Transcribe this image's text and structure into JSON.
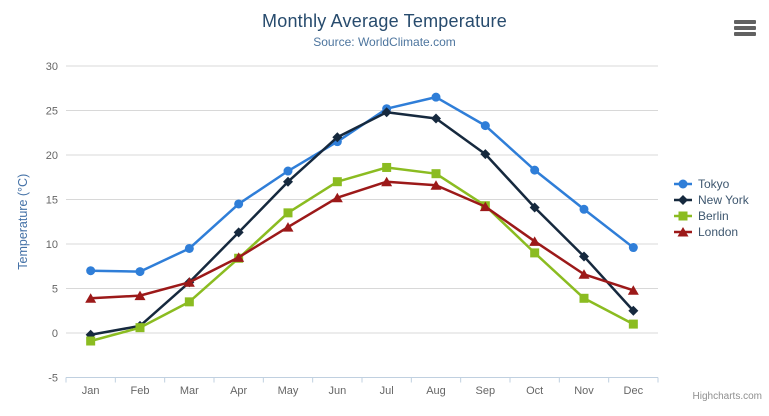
{
  "chart_data": {
    "type": "line",
    "title": "Monthly Average Temperature",
    "subtitle": "Source: WorldClimate.com",
    "xlabel": "",
    "ylabel": "Temperature (°C)",
    "ylim": [
      -5,
      30
    ],
    "yticks": [
      -5,
      0,
      5,
      10,
      15,
      20,
      25,
      30
    ],
    "grid": true,
    "legend_position": "right",
    "categories": [
      "Jan",
      "Feb",
      "Mar",
      "Apr",
      "May",
      "Jun",
      "Jul",
      "Aug",
      "Sep",
      "Oct",
      "Nov",
      "Dec"
    ],
    "series": [
      {
        "name": "Tokyo",
        "color": "#2f7ed8",
        "marker": "circle",
        "values": [
          7.0,
          6.9,
          9.5,
          14.5,
          18.2,
          21.5,
          25.2,
          26.5,
          23.3,
          18.3,
          13.9,
          9.6
        ]
      },
      {
        "name": "New York",
        "color": "#16293e",
        "marker": "diamond",
        "values": [
          -0.2,
          0.8,
          5.7,
          11.3,
          17.0,
          22.0,
          24.8,
          24.1,
          20.1,
          14.1,
          8.6,
          2.5
        ]
      },
      {
        "name": "Berlin",
        "color": "#8bbc21",
        "marker": "square",
        "values": [
          -0.9,
          0.6,
          3.5,
          8.4,
          13.5,
          17.0,
          18.6,
          17.9,
          14.3,
          9.0,
          3.9,
          1.0
        ]
      },
      {
        "name": "London",
        "color": "#9c1919",
        "marker": "triangle",
        "values": [
          3.9,
          4.2,
          5.7,
          8.5,
          11.9,
          15.2,
          17.0,
          16.6,
          14.2,
          10.3,
          6.6,
          4.8
        ]
      }
    ]
  },
  "colors": {
    "grid_line": "#d8d8d8",
    "axis_line": "#c0d0e0",
    "axis_label": "#666666",
    "y_axis_title": "#4572a7",
    "title": "#274b6d",
    "subtitle": "#4d759e",
    "legend_text": "#3e576f",
    "credits_text": "#8f8f8f"
  },
  "credits": {
    "label": "Highcharts.com"
  },
  "export_menu": {
    "icon": "hamburger-icon"
  }
}
